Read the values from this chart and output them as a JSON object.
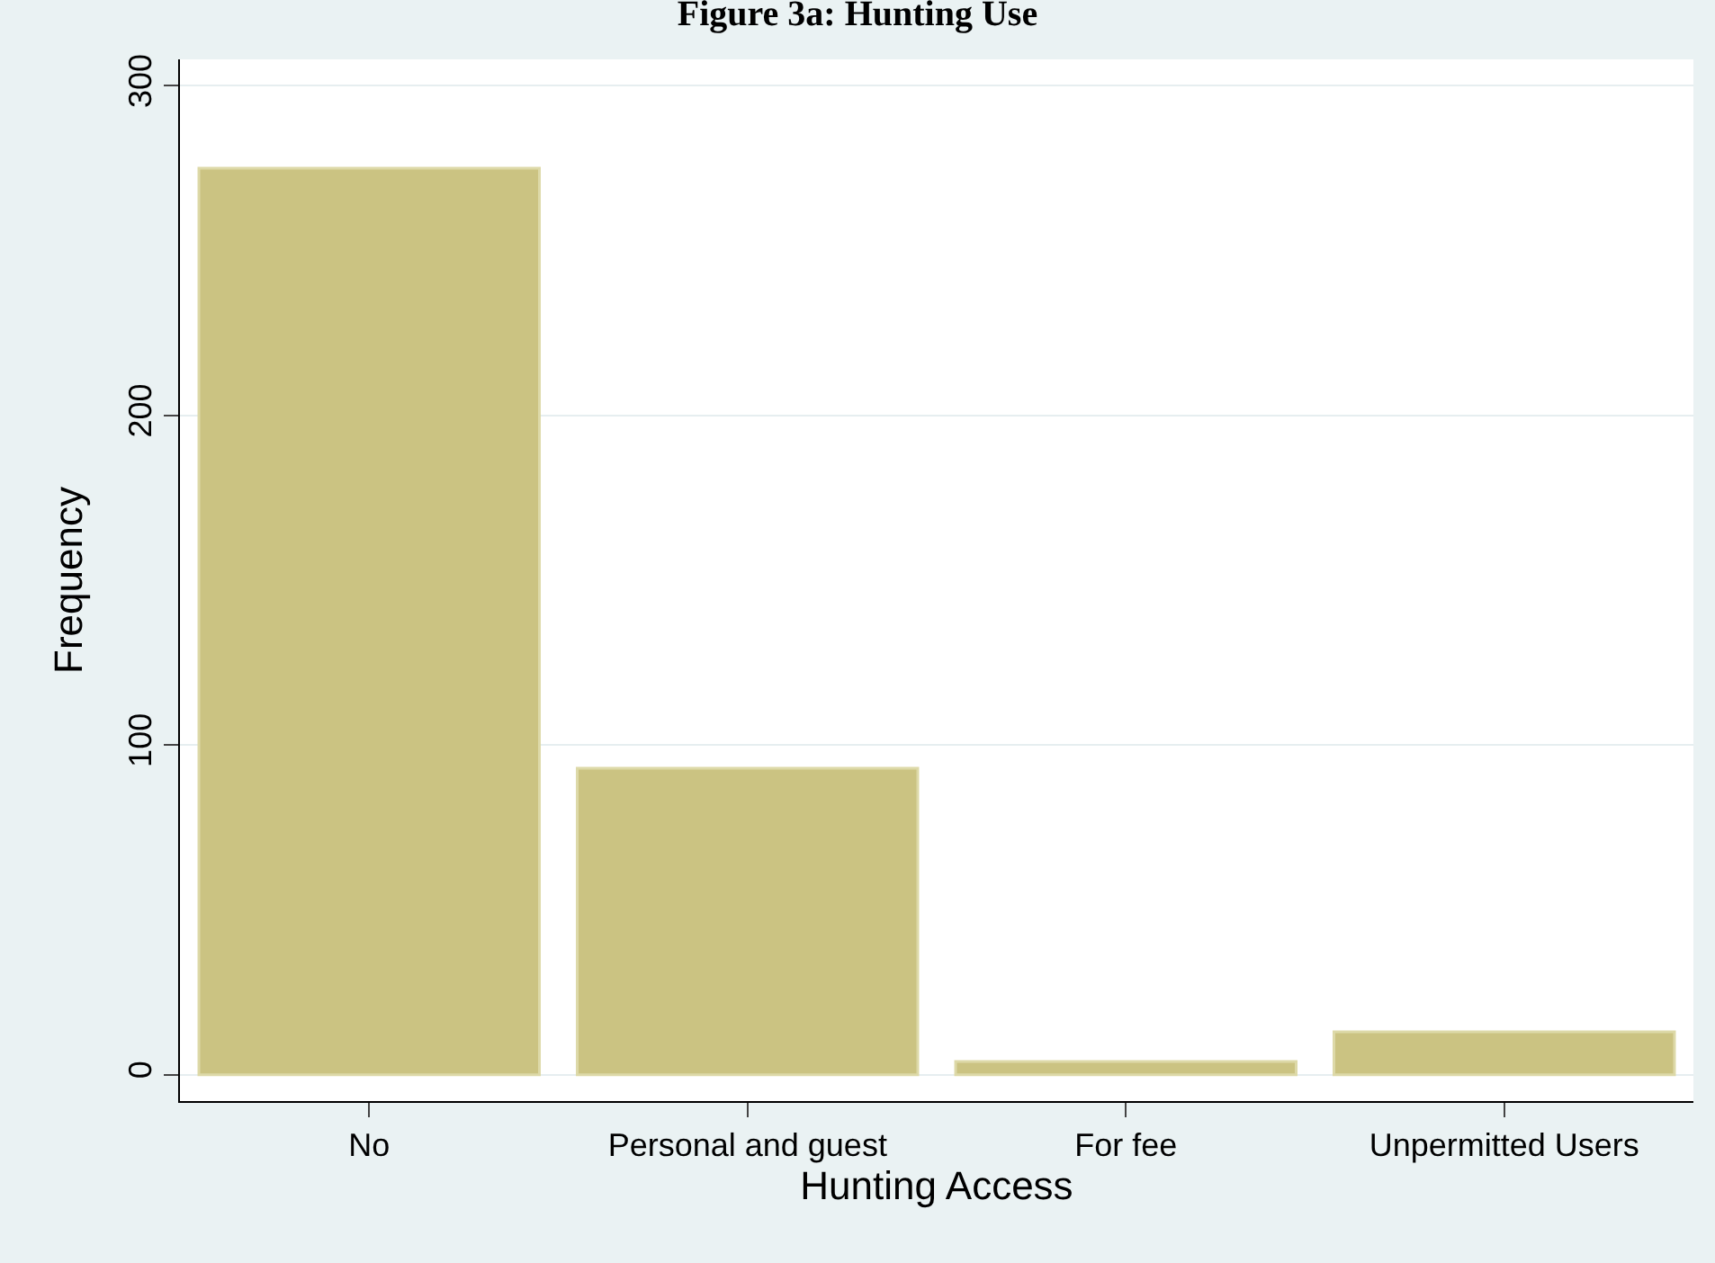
{
  "chart_data": {
    "type": "bar",
    "title": "Figure 3a: Hunting Use",
    "xlabel": "Hunting Access",
    "ylabel": "Frequency",
    "categories": [
      "No",
      "Personal and guest",
      "For fee",
      "Unpermitted Users"
    ],
    "values": [
      275,
      93,
      4,
      13
    ],
    "color": "#cbc382",
    "ylim": [
      -8,
      308
    ],
    "yticks": [
      0,
      100,
      200,
      300
    ],
    "grid": "y"
  }
}
